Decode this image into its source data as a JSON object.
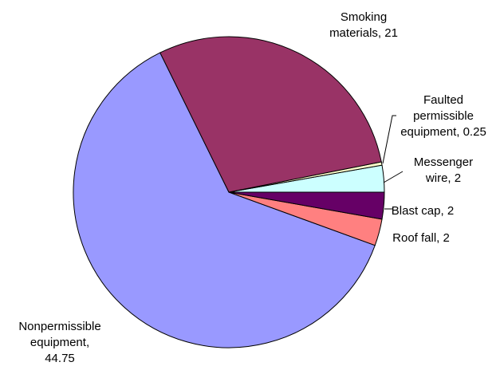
{
  "chart_data": {
    "type": "pie",
    "title": "",
    "start_angle_deg": 0,
    "direction": "counterclockwise",
    "slices": [
      {
        "label": "Nonpermissible equipment",
        "value": 44.75,
        "color": "#9999ff",
        "label_lines": [
          "Nonpermissible",
          "equipment,",
          "44.75"
        ]
      },
      {
        "label": "Roof fall",
        "value": 2,
        "color": "#ff8080",
        "label_lines": [
          "Roof fall, 2"
        ]
      },
      {
        "label": "Blast cap",
        "value": 2,
        "color": "#660066",
        "label_lines": [
          "Blast cap, 2"
        ]
      },
      {
        "label": "Messenger wire",
        "value": 2,
        "color": "#ccffff",
        "label_lines": [
          "Messenger",
          "wire, 2"
        ]
      },
      {
        "label": "Faulted permissible equipment",
        "value": 0.25,
        "color": "#ffffcc",
        "label_lines": [
          "Faulted",
          "permissible",
          "equipment, 0.25"
        ]
      },
      {
        "label": "Smoking materials",
        "value": 21,
        "color": "#993366",
        "label_lines": [
          "Smoking",
          "materials, 21"
        ]
      }
    ]
  }
}
